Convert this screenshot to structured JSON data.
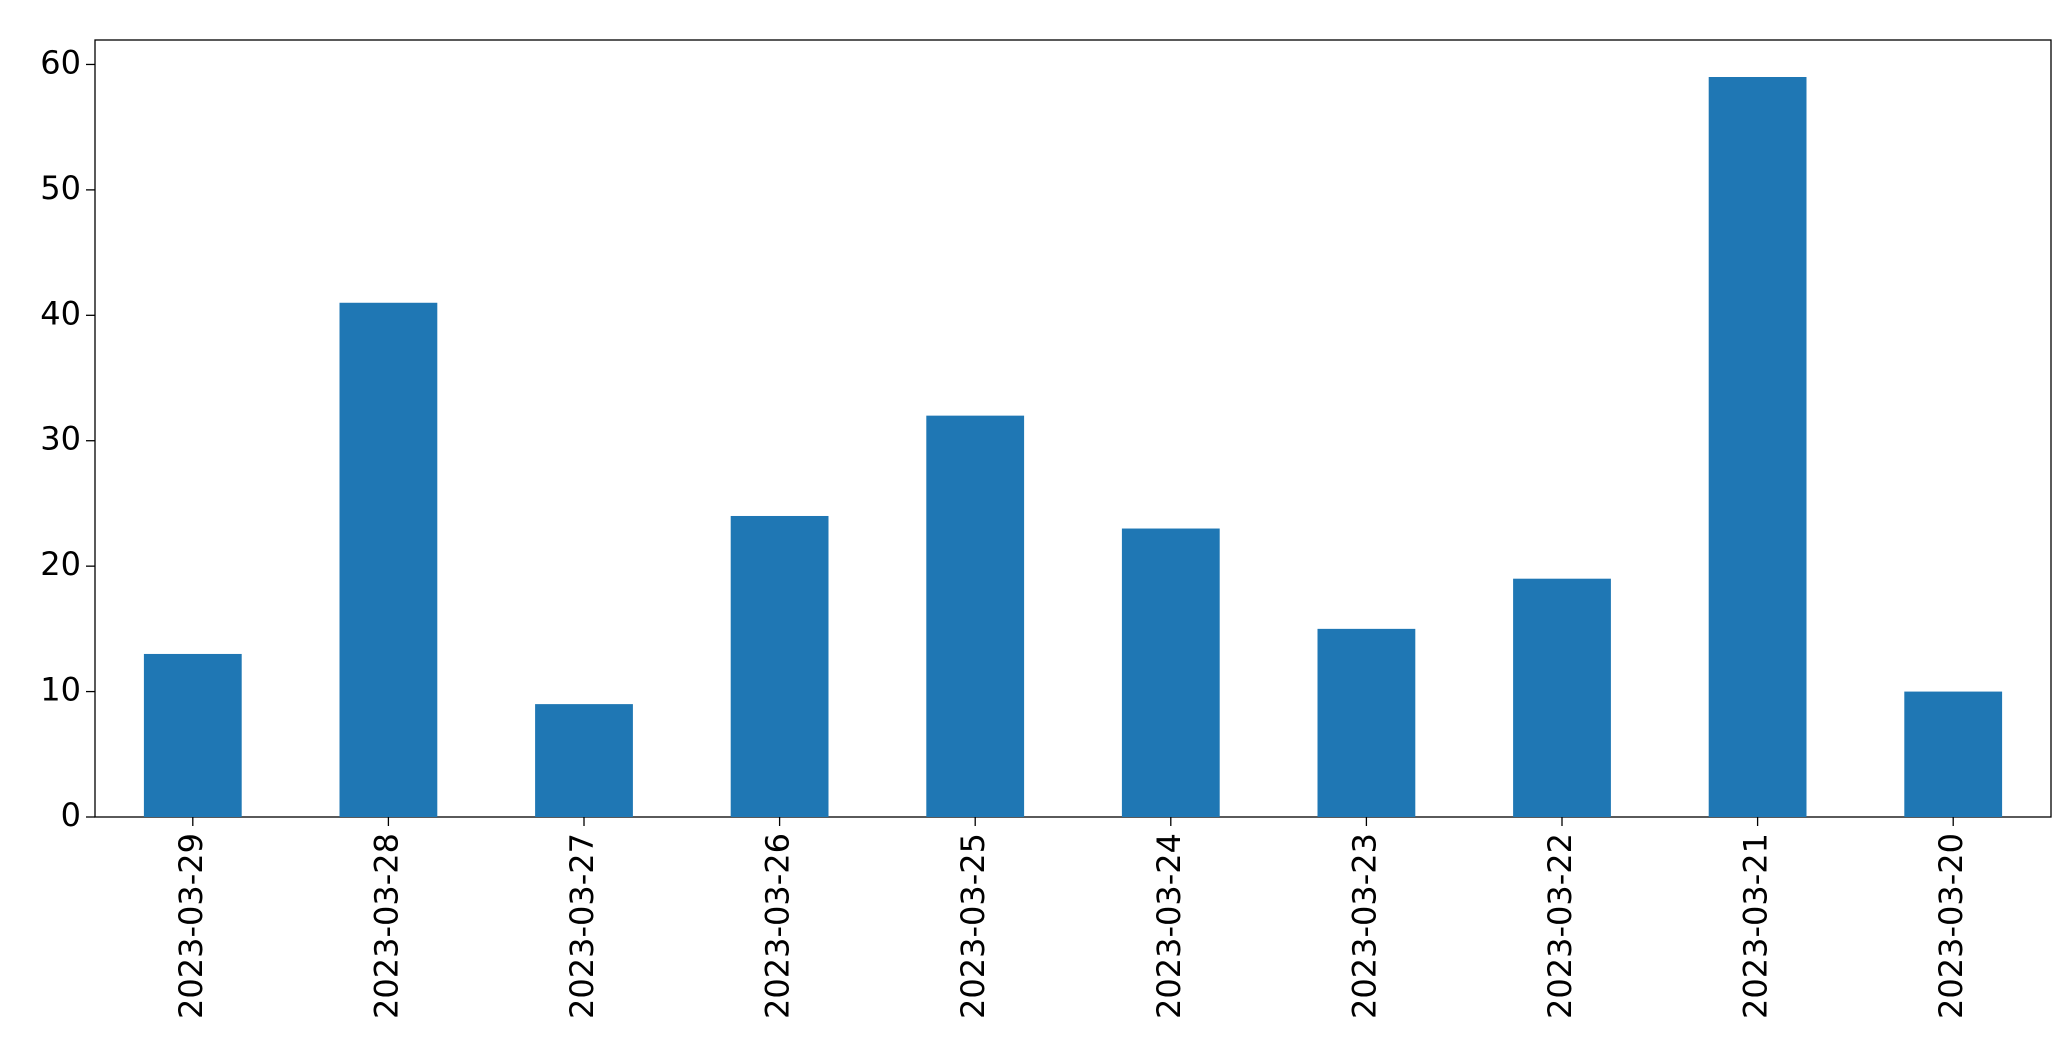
{
  "chart_data": {
    "type": "bar",
    "categories": [
      "2023-03-29",
      "2023-03-28",
      "2023-03-27",
      "2023-03-26",
      "2023-03-25",
      "2023-03-24",
      "2023-03-23",
      "2023-03-22",
      "2023-03-21",
      "2023-03-20"
    ],
    "values": [
      13,
      41,
      9,
      24,
      32,
      23,
      15,
      19,
      59,
      10
    ],
    "color": "#1f77b4",
    "ylim": [
      0,
      61.95
    ],
    "yticks": [
      0,
      10,
      20,
      30,
      40,
      50,
      60
    ],
    "grid": false
  }
}
